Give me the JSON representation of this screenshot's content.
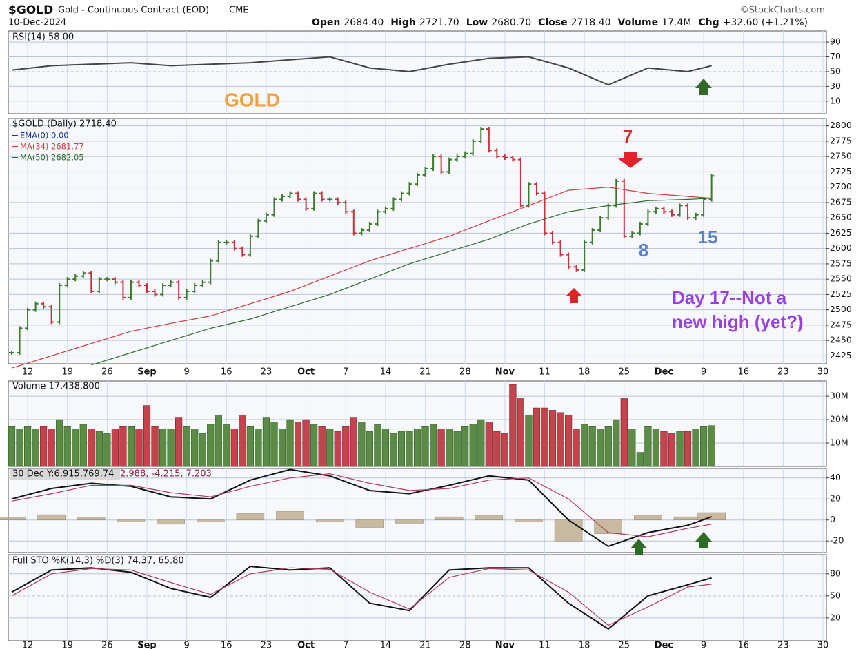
{
  "header": {
    "symbol": "$GOLD",
    "name": "Gold - Continuous Contract (EOD)",
    "exchange": "CME",
    "credit": "©StockCharts.com",
    "date": "10-Dec-2024",
    "quote": [
      {
        "label": "Open",
        "value": "2684.40"
      },
      {
        "label": "High",
        "value": "2721.70"
      },
      {
        "label": "Low",
        "value": "2680.70"
      },
      {
        "label": "Close",
        "value": "2718.40"
      },
      {
        "label": "Volume",
        "value": "17.4M"
      },
      {
        "label": "Chg",
        "value": "+32.60 (+1.21%)"
      }
    ]
  },
  "date_labels": [
    "12",
    "19",
    "26",
    "Sep",
    "9",
    "16",
    "23",
    "Oct",
    "7",
    "14",
    "21",
    "28",
    "Nov",
    "11",
    "18",
    "25",
    "Dec",
    "9",
    "16",
    "23",
    "30"
  ],
  "annotations": {
    "watermark": "GOLD",
    "count_7": "7",
    "count_8": "8",
    "count_15": "15",
    "note": [
      "Day 17--Not a",
      "new high (yet?)"
    ]
  },
  "chart_data": [
    {
      "type": "ohlc",
      "title": "$GOLD (Daily) 2718.40",
      "up_color": "#3b7a2a",
      "down_color": "#c8313a",
      "close": [
        2430,
        2470,
        2500,
        2510,
        2505,
        2480,
        2540,
        2550,
        2555,
        2560,
        2530,
        2550,
        2550,
        2545,
        2520,
        2545,
        2540,
        2530,
        2525,
        2540,
        2545,
        2520,
        2530,
        2540,
        2545,
        2580,
        2610,
        2610,
        2600,
        2590,
        2620,
        2645,
        2655,
        2680,
        2685,
        2690,
        2680,
        2665,
        2690,
        2680,
        2680,
        2675,
        2660,
        2625,
        2630,
        2640,
        2660,
        2665,
        2680,
        2690,
        2705,
        2720,
        2730,
        2750,
        2725,
        2745,
        2750,
        2755,
        2775,
        2795,
        2760,
        2750,
        2748,
        2745,
        2670,
        2705,
        2690,
        2625,
        2610,
        2590,
        2570,
        2565,
        2610,
        2630,
        2650,
        2670,
        2710,
        2620,
        2625,
        2640,
        2660,
        2665,
        2660,
        2655,
        2670,
        2650,
        2655,
        2680,
        2718.4
      ],
      "ylim": [
        2412,
        2812
      ],
      "yticks": [
        2425,
        2450,
        2475,
        2500,
        2525,
        2550,
        2575,
        2600,
        2625,
        2650,
        2675,
        2700,
        2725,
        2750,
        2775,
        2800
      ],
      "series": [
        {
          "name": "EMA(0) 0.00",
          "color": "#1f2f8f"
        },
        {
          "name": "MA(34) 2681.77",
          "color": "#d03a3a",
          "x": [
            0,
            5,
            10,
            15,
            20,
            25,
            30,
            35,
            40,
            45,
            50,
            55,
            60,
            65,
            70,
            75,
            80,
            85,
            88
          ],
          "values": [
            2405,
            2425,
            2445,
            2465,
            2478,
            2490,
            2510,
            2530,
            2555,
            2580,
            2600,
            2620,
            2645,
            2670,
            2695,
            2700,
            2690,
            2685,
            2682
          ]
        },
        {
          "name": "MA(50) 2682.05",
          "color": "#2e6b2a",
          "x": [
            10,
            15,
            20,
            25,
            30,
            35,
            40,
            45,
            50,
            55,
            60,
            65,
            70,
            75,
            80,
            85,
            88
          ],
          "values": [
            2410,
            2430,
            2450,
            2470,
            2485,
            2505,
            2525,
            2550,
            2575,
            2595,
            2615,
            2640,
            2660,
            2670,
            2678,
            2680,
            2682
          ]
        }
      ]
    },
    {
      "type": "line",
      "title": "RSI(14) 58.00",
      "ylim": [
        -7,
        105
      ],
      "yticks": [
        10,
        30,
        50,
        70,
        90
      ],
      "series": [
        {
          "color": "#444",
          "x": [
            0,
            5,
            10,
            15,
            20,
            25,
            30,
            35,
            40,
            45,
            50,
            55,
            60,
            65,
            70,
            75,
            80,
            85,
            88
          ],
          "values": [
            52,
            58,
            60,
            62,
            58,
            60,
            62,
            66,
            70,
            55,
            50,
            60,
            68,
            70,
            55,
            32,
            55,
            50,
            58
          ]
        }
      ]
    },
    {
      "type": "volume",
      "title": "Volume 17,438,800",
      "ylim": [
        0,
        36.5
      ],
      "yticks": [
        {
          "value": 10,
          "label": "10M"
        },
        {
          "value": 20,
          "label": "20M"
        },
        {
          "value": 30,
          "label": "30M"
        }
      ],
      "values": [
        17,
        16,
        17,
        16,
        17,
        16,
        20,
        17,
        16,
        18,
        16,
        15,
        14,
        16,
        17,
        17,
        16,
        26,
        17,
        16,
        16,
        21,
        17,
        16,
        14,
        18,
        22,
        18,
        16,
        22,
        17,
        16,
        21,
        19,
        16,
        20,
        19,
        20,
        18,
        17,
        16,
        15,
        17,
        21,
        19,
        15,
        18,
        16,
        14,
        15,
        15,
        16,
        17,
        18,
        16,
        16,
        15,
        17,
        18,
        20,
        19,
        15,
        14,
        35,
        29,
        22,
        25,
        25,
        24,
        23,
        22,
        16,
        18,
        17,
        16,
        17,
        20,
        29,
        16,
        6,
        17,
        16,
        15,
        14,
        15,
        15,
        16,
        17,
        17.44
      ]
    },
    {
      "type": "macd",
      "title": "30 Dec Y:6,915,769.74",
      "subtitle": "2.988, -4.215, 7.203",
      "ylim": [
        -31,
        49
      ],
      "yticks": [
        -20,
        0,
        20,
        40
      ],
      "x": [
        0,
        5,
        10,
        15,
        20,
        25,
        30,
        35,
        40,
        45,
        50,
        55,
        60,
        65,
        70,
        75,
        80,
        85,
        88
      ],
      "series": [
        {
          "color": "#111",
          "values": [
            20,
            30,
            35,
            32,
            22,
            20,
            38,
            48,
            42,
            28,
            25,
            33,
            42,
            38,
            0,
            -25,
            -12,
            -5,
            3
          ]
        },
        {
          "color": "#b03a5a",
          "values": [
            18,
            25,
            33,
            33,
            26,
            22,
            32,
            40,
            44,
            35,
            28,
            30,
            38,
            40,
            20,
            -12,
            -16,
            -8,
            -4
          ]
        }
      ],
      "histogram": {
        "color": "#c9b9a0",
        "values": [
          2,
          5,
          2,
          -1,
          -4,
          -2,
          6,
          8,
          -2,
          -7,
          -3,
          3,
          4,
          -2,
          -20,
          -13,
          4,
          3,
          7
        ]
      }
    },
    {
      "type": "line",
      "title": "Full STO %K(14,3) %D(3) 74.37, 65.80",
      "ylim": [
        -11,
        106
      ],
      "yticks": [
        20,
        50,
        80
      ],
      "series": [
        {
          "color": "#111",
          "x": [
            0,
            5,
            10,
            15,
            20,
            25,
            30,
            35,
            40,
            45,
            50,
            55,
            60,
            65,
            70,
            75,
            80,
            85,
            88
          ],
          "values": [
            55,
            85,
            88,
            82,
            60,
            48,
            90,
            85,
            88,
            40,
            30,
            85,
            88,
            88,
            40,
            5,
            50,
            65,
            74.37
          ]
        },
        {
          "color": "#b03a5a",
          "x": [
            0,
            5,
            10,
            15,
            20,
            25,
            30,
            35,
            40,
            45,
            50,
            55,
            60,
            65,
            70,
            75,
            80,
            85,
            88
          ],
          "values": [
            50,
            80,
            87,
            85,
            68,
            52,
            80,
            88,
            86,
            55,
            32,
            75,
            87,
            85,
            55,
            10,
            35,
            62,
            65.8
          ]
        }
      ]
    }
  ]
}
